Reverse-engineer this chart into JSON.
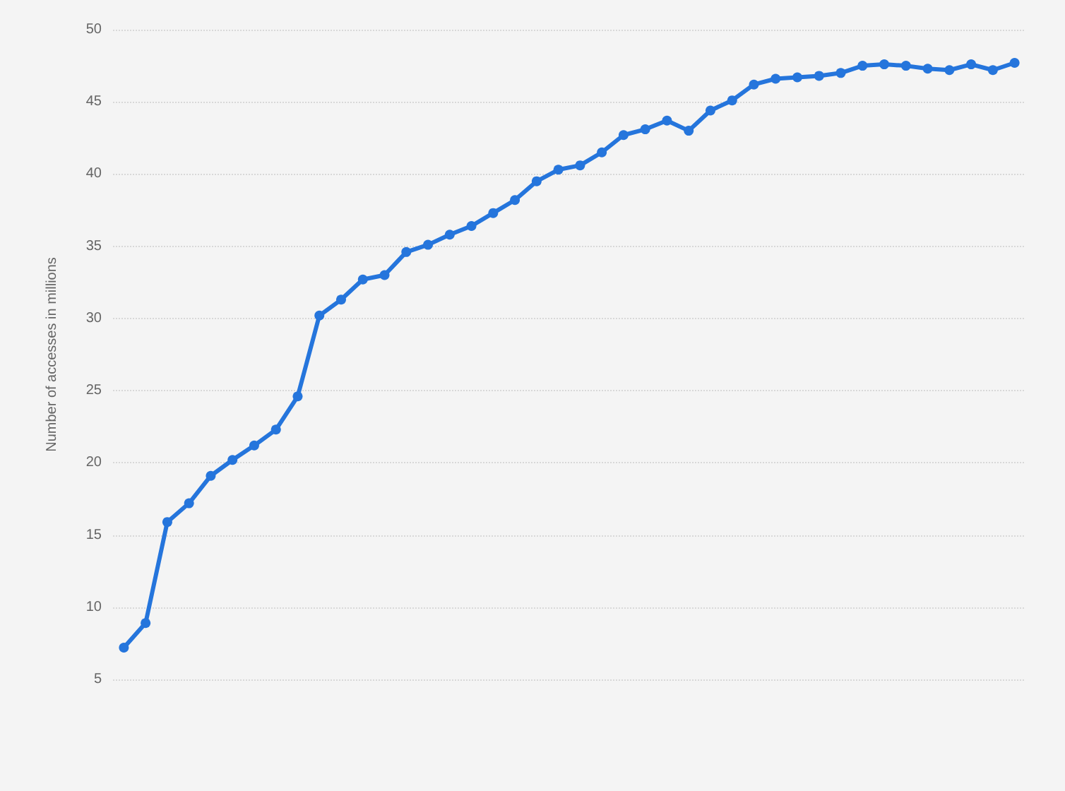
{
  "chart_data": {
    "type": "line",
    "ylabel": "Number of accesses in millions",
    "categories": [
      null,
      null,
      null,
      null,
      null,
      null,
      null,
      null,
      null,
      null,
      null,
      null,
      null,
      null,
      null,
      null,
      null,
      null,
      null,
      null,
      null,
      null,
      null,
      null,
      null,
      null,
      null,
      null,
      null,
      null,
      null,
      null,
      null,
      null,
      null,
      null,
      null,
      null,
      null,
      null,
      null,
      null
    ],
    "series": [
      {
        "color": "#2575dc",
        "values": [
          7.2,
          8.9,
          15.9,
          17.2,
          19.1,
          20.2,
          21.2,
          22.3,
          24.6,
          30.2,
          31.3,
          32.7,
          33.0,
          34.6,
          35.1,
          35.8,
          36.4,
          37.3,
          38.2,
          39.5,
          40.3,
          40.6,
          41.5,
          42.7,
          43.1,
          43.7,
          43.0,
          44.4,
          45.1,
          46.2,
          46.6,
          46.7,
          46.8,
          47.0,
          47.5,
          47.6,
          47.5,
          47.3,
          47.2,
          47.6,
          47.2,
          47.7
        ]
      }
    ],
    "ylim": [
      5,
      50
    ],
    "yticks": [
      5,
      10,
      15,
      20,
      25,
      30,
      35,
      40,
      45,
      50
    ],
    "grid": "y",
    "marker": "circle",
    "line_style": "solid"
  }
}
